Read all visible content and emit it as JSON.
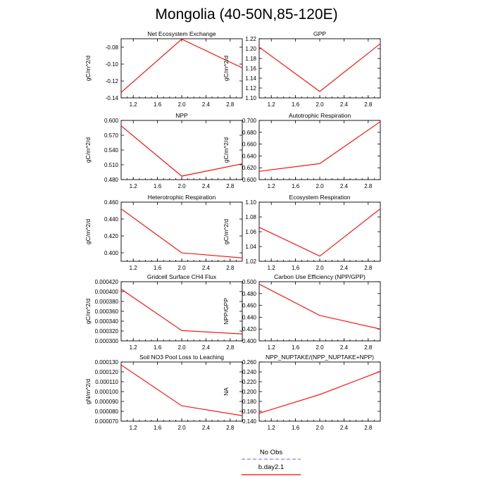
{
  "figure_title": "Mongolia (40-50N,85-120E)",
  "legend": [
    {
      "label": "No Obs",
      "color": "#8080ff",
      "dash": true
    },
    {
      "label": "b.day2.1",
      "color": "#ff0000",
      "dash": false
    }
  ],
  "chart_data": [
    {
      "type": "line",
      "title": "Net Ecosystem Exchange",
      "ylabel": "gC/m^2/d",
      "xlim": [
        1.0,
        3.0
      ],
      "ylim": [
        -0.14,
        -0.07
      ],
      "xticks": [
        1.2,
        1.6,
        2.0,
        2.4,
        2.8
      ],
      "xtick_labels": [
        "1.2",
        "1.6",
        "2.0",
        "2.4",
        "2.8"
      ],
      "yticks": [
        -0.14,
        -0.12,
        -0.1,
        -0.08
      ],
      "ytick_labels": [
        "-0.14",
        "-0.12",
        "-0.10",
        "-0.08"
      ],
      "series": [
        {
          "name": "b.day2.1",
          "x": [
            1.0,
            2.0,
            3.0
          ],
          "y": [
            -0.1335,
            -0.0705,
            -0.1045
          ]
        }
      ]
    },
    {
      "type": "line",
      "title": "GPP",
      "ylabel": "gC/m^2/d",
      "xlim": [
        1.0,
        3.0
      ],
      "ylim": [
        1.1,
        1.22
      ],
      "xticks": [
        1.2,
        1.6,
        2.0,
        2.4,
        2.8
      ],
      "xtick_labels": [
        "1.2",
        "1.6",
        "2.0",
        "2.4",
        "2.8"
      ],
      "yticks": [
        1.1,
        1.12,
        1.14,
        1.16,
        1.18,
        1.2,
        1.22
      ],
      "ytick_labels": [
        "1.10",
        "1.12",
        "1.14",
        "1.16",
        "1.18",
        "1.20",
        "1.22"
      ],
      "series": [
        {
          "name": "b.day2.1",
          "x": [
            1.0,
            2.0,
            3.0
          ],
          "y": [
            1.203,
            1.113,
            1.21
          ]
        }
      ]
    },
    {
      "type": "line",
      "title": "NPP",
      "ylabel": "gC/m^2/d",
      "xlim": [
        1.0,
        3.0
      ],
      "ylim": [
        0.48,
        0.6
      ],
      "xticks": [
        1.2,
        1.6,
        2.0,
        2.4,
        2.8
      ],
      "xtick_labels": [
        "1.2",
        "1.6",
        "2.0",
        "2.4",
        "2.8"
      ],
      "yticks": [
        0.48,
        0.51,
        0.54,
        0.57,
        0.6
      ],
      "ytick_labels": [
        "0.480",
        "0.510",
        "0.540",
        "0.570",
        "0.600"
      ],
      "series": [
        {
          "name": "b.day2.1",
          "x": [
            1.0,
            2.0,
            3.0
          ],
          "y": [
            0.589,
            0.487,
            0.512
          ]
        }
      ]
    },
    {
      "type": "line",
      "title": "Autotrophic Respiration",
      "ylabel": "gC/m^2/d",
      "xlim": [
        1.0,
        3.0
      ],
      "ylim": [
        0.6,
        0.7
      ],
      "xticks": [
        1.2,
        1.6,
        2.0,
        2.4,
        2.8
      ],
      "xtick_labels": [
        "1.2",
        "1.6",
        "2.0",
        "2.4",
        "2.8"
      ],
      "yticks": [
        0.6,
        0.62,
        0.64,
        0.66,
        0.68,
        0.7
      ],
      "ytick_labels": [
        "0.600",
        "0.620",
        "0.640",
        "0.660",
        "0.680",
        "0.700"
      ],
      "series": [
        {
          "name": "b.day2.1",
          "x": [
            1.0,
            2.0,
            3.0
          ],
          "y": [
            0.614,
            0.627,
            0.698
          ]
        }
      ]
    },
    {
      "type": "line",
      "title": "Heterotrophic Respiration",
      "ylabel": "gC/m^2/d",
      "xlim": [
        1.0,
        3.0
      ],
      "ylim": [
        0.39,
        0.46
      ],
      "xticks": [
        1.2,
        1.6,
        2.0,
        2.4,
        2.8
      ],
      "xtick_labels": [
        "1.2",
        "1.6",
        "2.0",
        "2.4",
        "2.8"
      ],
      "yticks": [
        0.4,
        0.42,
        0.44,
        0.46
      ],
      "ytick_labels": [
        "0.400",
        "0.420",
        "0.440",
        "0.460"
      ],
      "series": [
        {
          "name": "b.day2.1",
          "x": [
            1.0,
            2.0,
            3.0
          ],
          "y": [
            0.452,
            0.4,
            0.394
          ]
        }
      ]
    },
    {
      "type": "line",
      "title": "Ecosystem Respiration",
      "ylabel": "gC/m^2/d",
      "xlim": [
        1.0,
        3.0
      ],
      "ylim": [
        1.02,
        1.1
      ],
      "xticks": [
        1.2,
        1.6,
        2.0,
        2.4,
        2.8
      ],
      "xtick_labels": [
        "1.2",
        "1.6",
        "2.0",
        "2.4",
        "2.8"
      ],
      "yticks": [
        1.02,
        1.04,
        1.06,
        1.08,
        1.1
      ],
      "ytick_labels": [
        "1.02",
        "1.04",
        "1.06",
        "1.08",
        "1.10"
      ],
      "series": [
        {
          "name": "b.day2.1",
          "x": [
            1.0,
            2.0,
            3.0
          ],
          "y": [
            1.066,
            1.027,
            1.091
          ]
        }
      ]
    },
    {
      "type": "line",
      "title": "Gridcell Surface CH4 Flux",
      "ylabel": "gC/m^2/d",
      "xlim": [
        1.0,
        3.0
      ],
      "ylim": [
        0.0003,
        0.00042
      ],
      "xticks": [
        1.2,
        1.6,
        2.0,
        2.4,
        2.8
      ],
      "xtick_labels": [
        "1.2",
        "1.6",
        "2.0",
        "2.4",
        "2.8"
      ],
      "yticks": [
        0.0003,
        0.00032,
        0.00034,
        0.00036,
        0.00038,
        0.0004,
        0.00042
      ],
      "ytick_labels": [
        "0.000300",
        "0.000320",
        "0.000340",
        "0.000360",
        "0.000380",
        "0.000400",
        "0.000420"
      ],
      "series": [
        {
          "name": "b.day2.1",
          "x": [
            1.0,
            2.0,
            3.0
          ],
          "y": [
            0.000405,
            0.000321,
            0.000314
          ]
        }
      ]
    },
    {
      "type": "line",
      "title": "Carbon Use Efficiency (NPP/GPP)",
      "ylabel": "NPP/GPP",
      "xlim": [
        1.0,
        3.0
      ],
      "ylim": [
        0.4,
        0.5
      ],
      "xticks": [
        1.2,
        1.6,
        2.0,
        2.4,
        2.8
      ],
      "xtick_labels": [
        "1.2",
        "1.6",
        "2.0",
        "2.4",
        "2.8"
      ],
      "yticks": [
        0.4,
        0.42,
        0.44,
        0.46,
        0.48,
        0.5
      ],
      "ytick_labels": [
        "0.400",
        "0.420",
        "0.440",
        "0.460",
        "0.480",
        "0.500"
      ],
      "series": [
        {
          "name": "b.day2.1",
          "x": [
            1.0,
            2.0,
            3.0
          ],
          "y": [
            0.496,
            0.443,
            0.42
          ]
        }
      ]
    },
    {
      "type": "line",
      "title": "Soil NO3 Pool Loss to Leaching",
      "ylabel": "gN/m^2/d",
      "xlim": [
        1.0,
        3.0
      ],
      "ylim": [
        7e-05,
        0.00013
      ],
      "xticks": [
        1.2,
        1.6,
        2.0,
        2.4,
        2.8
      ],
      "xtick_labels": [
        "1.2",
        "1.6",
        "2.0",
        "2.4",
        "2.8"
      ],
      "yticks": [
        7e-05,
        8e-05,
        9e-05,
        0.0001,
        0.00011,
        0.00012,
        0.00013
      ],
      "ytick_labels": [
        "0.000070",
        "0.000080",
        "0.000090",
        "0.000100",
        "0.000110",
        "0.000120",
        "0.000130"
      ],
      "series": [
        {
          "name": "b.day2.1",
          "x": [
            1.0,
            2.0,
            3.0
          ],
          "y": [
            0.000127,
            8.56e-05,
            7.56e-05
          ]
        }
      ]
    },
    {
      "type": "line",
      "title": "NPP_NUPTAKE/(NPP_NUPTAKE+NPP)",
      "ylabel": "NA",
      "xlim": [
        1.0,
        3.0
      ],
      "ylim": [
        0.14,
        0.26
      ],
      "xticks": [
        1.2,
        1.6,
        2.0,
        2.4,
        2.8
      ],
      "xtick_labels": [
        "1.2",
        "1.6",
        "2.0",
        "2.4",
        "2.8"
      ],
      "yticks": [
        0.14,
        0.16,
        0.18,
        0.2,
        0.22,
        0.24,
        0.26
      ],
      "ytick_labels": [
        "0.140",
        "0.160",
        "0.180",
        "0.200",
        "0.220",
        "0.240",
        "0.260"
      ],
      "series": [
        {
          "name": "b.day2.1",
          "x": [
            1.0,
            2.0,
            3.0
          ],
          "y": [
            0.156,
            0.194,
            0.241
          ]
        }
      ]
    }
  ]
}
